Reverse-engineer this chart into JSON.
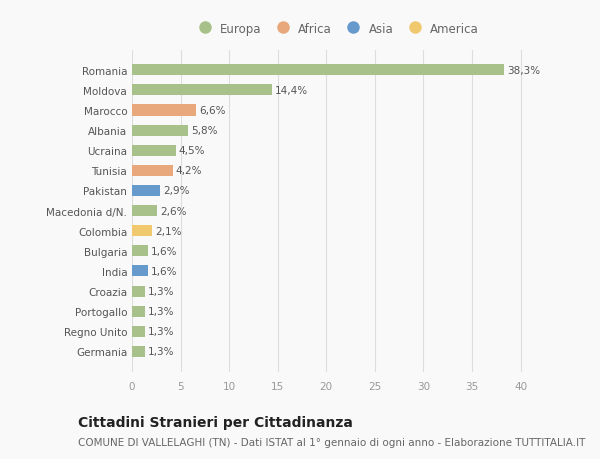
{
  "categories": [
    "Romania",
    "Moldova",
    "Marocco",
    "Albania",
    "Ucraina",
    "Tunisia",
    "Pakistan",
    "Macedonia d/N.",
    "Colombia",
    "Bulgaria",
    "India",
    "Croazia",
    "Portogallo",
    "Regno Unito",
    "Germania"
  ],
  "values": [
    38.3,
    14.4,
    6.6,
    5.8,
    4.5,
    4.2,
    2.9,
    2.6,
    2.1,
    1.6,
    1.6,
    1.3,
    1.3,
    1.3,
    1.3
  ],
  "labels": [
    "38,3%",
    "14,4%",
    "6,6%",
    "5,8%",
    "4,5%",
    "4,2%",
    "2,9%",
    "2,6%",
    "2,1%",
    "1,6%",
    "1,6%",
    "1,3%",
    "1,3%",
    "1,3%",
    "1,3%"
  ],
  "continents": [
    "Europa",
    "Europa",
    "Africa",
    "Europa",
    "Europa",
    "Africa",
    "Asia",
    "Europa",
    "America",
    "Europa",
    "Asia",
    "Europa",
    "Europa",
    "Europa",
    "Europa"
  ],
  "continent_colors": {
    "Europa": "#a8c08a",
    "Africa": "#e8a87c",
    "Asia": "#6699cc",
    "America": "#f0c96e"
  },
  "legend_order": [
    "Europa",
    "Africa",
    "Asia",
    "America"
  ],
  "title": "Cittadini Stranieri per Cittadinanza",
  "subtitle": "COMUNE DI VALLELAGHI (TN) - Dati ISTAT al 1° gennaio di ogni anno - Elaborazione TUTTITALIA.IT",
  "xlim": [
    0,
    42
  ],
  "xticks": [
    0,
    5,
    10,
    15,
    20,
    25,
    30,
    35,
    40
  ],
  "background_color": "#f9f9f9",
  "grid_color": "#dddddd",
  "bar_height": 0.55,
  "title_fontsize": 10,
  "subtitle_fontsize": 7.5,
  "label_fontsize": 7.5,
  "tick_fontsize": 7.5,
  "legend_fontsize": 8.5
}
